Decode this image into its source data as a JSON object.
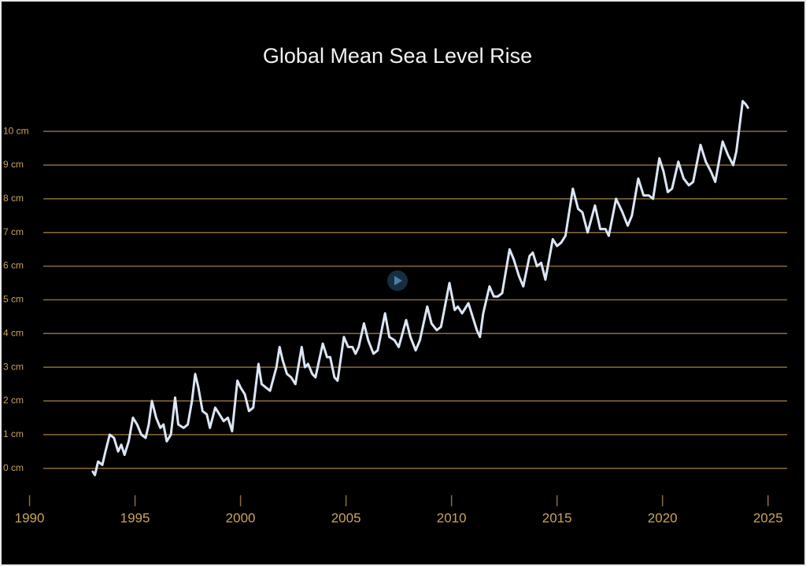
{
  "chart_data": {
    "type": "line",
    "title": "Global Mean Sea Level Rise",
    "x": [
      1993.0,
      1993.1,
      1993.25,
      1993.45,
      1993.6,
      1993.8,
      1994.0,
      1994.2,
      1994.35,
      1994.5,
      1994.7,
      1994.9,
      1995.1,
      1995.3,
      1995.5,
      1995.65,
      1995.8,
      1996.0,
      1996.2,
      1996.35,
      1996.5,
      1996.7,
      1996.9,
      1997.05,
      1997.3,
      1997.5,
      1997.7,
      1997.85,
      1998.0,
      1998.2,
      1998.4,
      1998.55,
      1998.8,
      1999.0,
      1999.2,
      1999.4,
      1999.6,
      1999.85,
      2000.0,
      2000.2,
      2000.4,
      2000.6,
      2000.85,
      2001.0,
      2001.2,
      2001.4,
      2001.7,
      2001.85,
      2002.0,
      2002.2,
      2002.4,
      2002.6,
      2002.9,
      2003.05,
      2003.2,
      2003.4,
      2003.55,
      2003.9,
      2004.1,
      2004.25,
      2004.45,
      2004.6,
      2004.9,
      2005.1,
      2005.3,
      2005.45,
      2005.6,
      2005.85,
      2006.05,
      2006.3,
      2006.5,
      2006.85,
      2007.05,
      2007.3,
      2007.5,
      2007.85,
      2008.05,
      2008.3,
      2008.5,
      2008.85,
      2009.05,
      2009.3,
      2009.5,
      2009.9,
      2010.15,
      2010.3,
      2010.5,
      2010.8,
      2011.0,
      2011.2,
      2011.35,
      2011.5,
      2011.8,
      2012.0,
      2012.2,
      2012.4,
      2012.75,
      2012.95,
      2013.2,
      2013.4,
      2013.7,
      2013.85,
      2014.05,
      2014.25,
      2014.45,
      2014.8,
      2015.0,
      2015.2,
      2015.4,
      2015.75,
      2016.0,
      2016.2,
      2016.45,
      2016.8,
      2017.05,
      2017.3,
      2017.45,
      2017.8,
      2018.1,
      2018.35,
      2018.55,
      2018.85,
      2019.1,
      2019.35,
      2019.55,
      2019.85,
      2020.05,
      2020.25,
      2020.45,
      2020.75,
      2021.0,
      2021.25,
      2021.45,
      2021.8,
      2022.05,
      2022.3,
      2022.5,
      2022.85,
      2023.1,
      2023.35,
      2023.5,
      2023.8,
      2023.95,
      2024.05
    ],
    "values": [
      -0.1,
      -0.2,
      0.2,
      0.1,
      0.5,
      1.0,
      0.9,
      0.5,
      0.7,
      0.4,
      0.8,
      1.5,
      1.3,
      1.0,
      0.9,
      1.3,
      2.0,
      1.5,
      1.2,
      1.3,
      0.8,
      1.0,
      2.1,
      1.3,
      1.2,
      1.3,
      2.0,
      2.8,
      2.4,
      1.7,
      1.6,
      1.2,
      1.8,
      1.6,
      1.4,
      1.5,
      1.1,
      2.6,
      2.4,
      2.2,
      1.7,
      1.8,
      3.1,
      2.5,
      2.4,
      2.3,
      3.0,
      3.6,
      3.2,
      2.8,
      2.7,
      2.5,
      3.6,
      3.0,
      3.1,
      2.8,
      2.7,
      3.7,
      3.3,
      3.3,
      2.7,
      2.6,
      3.9,
      3.6,
      3.6,
      3.4,
      3.6,
      4.3,
      3.8,
      3.4,
      3.5,
      4.6,
      3.9,
      3.8,
      3.6,
      4.4,
      3.9,
      3.5,
      3.8,
      4.8,
      4.3,
      4.1,
      4.2,
      5.5,
      4.7,
      4.8,
      4.6,
      4.9,
      4.5,
      4.1,
      3.9,
      4.6,
      5.4,
      5.1,
      5.1,
      5.2,
      6.5,
      6.2,
      5.7,
      5.4,
      6.3,
      6.4,
      6.0,
      6.1,
      5.6,
      6.8,
      6.6,
      6.7,
      6.9,
      8.3,
      7.7,
      7.6,
      7.0,
      7.8,
      7.1,
      7.1,
      6.9,
      8.0,
      7.6,
      7.2,
      7.5,
      8.6,
      8.1,
      8.1,
      8.0,
      9.2,
      8.8,
      8.2,
      8.3,
      9.1,
      8.6,
      8.4,
      8.5,
      9.6,
      9.1,
      8.8,
      8.5,
      9.7,
      9.3,
      9.0,
      9.4,
      10.9,
      10.8,
      10.7
    ],
    "color": "#dce6f5",
    "grid": true,
    "grid_color": "#8a6d3b",
    "xlim": [
      1988.6,
      2026.8
    ],
    "xticks": [
      1990,
      1995,
      2000,
      2005,
      2010,
      2015,
      2020,
      2025
    ],
    "ylim": [
      -2.9,
      13.9
    ],
    "yticks": [
      {
        "value": 0,
        "label": "0 cm"
      },
      {
        "value": 1,
        "label": "1 cm"
      },
      {
        "value": 2,
        "label": "2 cm"
      },
      {
        "value": 3,
        "label": "3 cm"
      },
      {
        "value": 4,
        "label": "4 cm"
      },
      {
        "value": 5,
        "label": "5 cm"
      },
      {
        "value": 6,
        "label": "6 cm"
      },
      {
        "value": 7,
        "label": "7 cm"
      },
      {
        "value": 8,
        "label": "8 cm"
      },
      {
        "value": 9,
        "label": "9 cm"
      },
      {
        "value": 10,
        "label": "10 cm"
      }
    ]
  }
}
